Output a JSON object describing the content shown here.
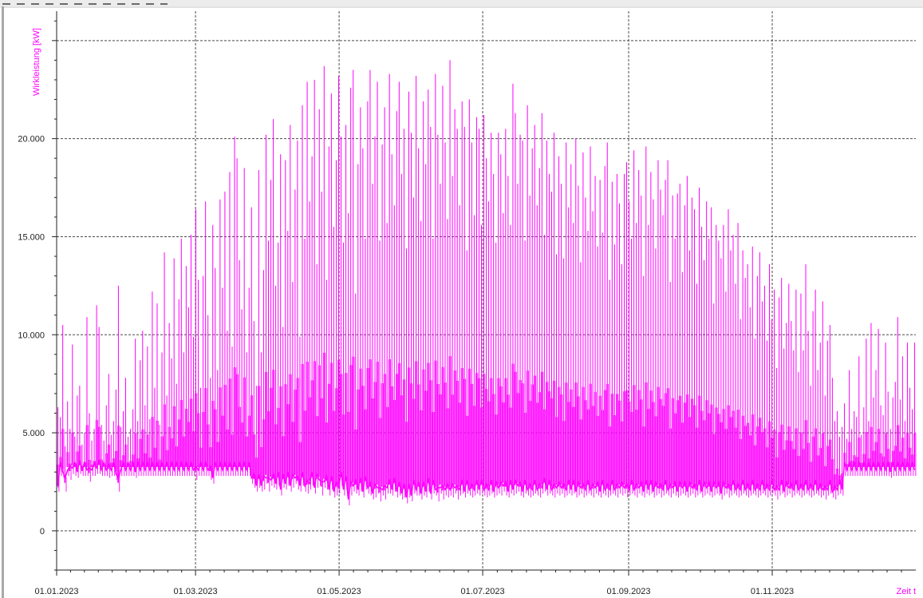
{
  "chart_data": {
    "type": "line",
    "ylabel": "Wirkleistung [kW]",
    "xlabel": "Zeit t",
    "x_ticks": [
      "01.01.2023",
      "01.03.2023",
      "01.05.2023",
      "01.07.2023",
      "01.09.2023",
      "01.11.2023"
    ],
    "y_ticks": [
      "0",
      "5.000",
      "10.000",
      "15.000",
      "20.000"
    ],
    "xlim": [
      "01.01.2023",
      "31.12.2023"
    ],
    "ylim": [
      -2000,
      26500
    ],
    "grid": true,
    "series": [
      {
        "color": "#ff00ff",
        "resolution": "daily",
        "daily_max_kw": [
          6300,
          5800,
          10500,
          4300,
          6600,
          5200,
          9500,
          4800,
          6900,
          7400,
          4400,
          5000,
          10900,
          6000,
          4600,
          5200,
          11500,
          10400,
          5400,
          4600,
          6400,
          8000,
          4900,
          5600,
          7200,
          12500,
          5300,
          6100,
          7800,
          4800,
          5200,
          6200,
          9800,
          5600,
          8700,
          10200,
          6400,
          9400,
          5700,
          12200,
          7300,
          11600,
          5400,
          9100,
          14200,
          6900,
          10600,
          8800,
          13900,
          7500,
          11800,
          14900,
          9100,
          13500,
          11400,
          15100,
          9900,
          16400,
          12800,
          7300,
          13000,
          16800,
          11000,
          7800,
          15600,
          13400,
          8200,
          16900,
          12400,
          17300,
          10200,
          18300,
          9400,
          20100,
          19000,
          13800,
          11300,
          18500,
          9100,
          12400,
          16500,
          10700,
          7400,
          18400,
          9100,
          13300,
          20200,
          14800,
          17900,
          21000,
          12500,
          14700,
          19200,
          10400,
          18900,
          15300,
          20700,
          12700,
          17400,
          19900,
          9900,
          21700,
          14900,
          22900,
          16800,
          19100,
          23000,
          13600,
          21500,
          17300,
          23700,
          12800,
          19600,
          22300,
          15500,
          18900,
          23200,
          20100,
          14700,
          20700,
          16200,
          22600,
          23500,
          12100,
          18700,
          21600,
          19500,
          14900,
          21900,
          23500,
          17700,
          20100,
          22900,
          14800,
          19700,
          21600,
          15700,
          23300,
          19200,
          16600,
          21400,
          22900,
          18200,
          20500,
          14400,
          22400,
          20300,
          17000,
          23200,
          19500,
          15800,
          21900,
          18700,
          22500,
          20600,
          14900,
          23300,
          20200,
          17700,
          22700,
          19800,
          15900,
          24000,
          18100,
          21500,
          20500,
          16600,
          21900,
          20600,
          14300,
          22000,
          19800,
          16100,
          21100,
          20500,
          15600,
          21200,
          19000,
          16800,
          20300,
          18200,
          14700,
          20300,
          19200,
          16200,
          20500,
          18100,
          15600,
          22800,
          21300,
          17700,
          20200,
          19900,
          14800,
          21700,
          17100,
          19500,
          20700,
          16600,
          18500,
          21300,
          15100,
          19900,
          18200,
          17300,
          20300,
          14100,
          19100,
          17700,
          13900,
          19800,
          16500,
          18700,
          15700,
          20000,
          17600,
          13700,
          19300,
          17000,
          15300,
          19600,
          16300,
          18100,
          14500,
          17900,
          15200,
          18600,
          19800,
          12800,
          17800,
          14600,
          18200,
          16700,
          13600,
          18200,
          18800,
          16800,
          14900,
          19400,
          15700,
          18400,
          17100,
          13000,
          19600,
          15600,
          18300,
          16900,
          14400,
          18900,
          17400,
          16100,
          17900,
          18900,
          12700,
          17100,
          14900,
          17200,
          17700,
          13200,
          16600,
          18100,
          14300,
          17000,
          16400,
          12600,
          17500,
          15500,
          13800,
          16800,
          14900,
          16500,
          11600,
          15600,
          14800,
          13900,
          15600,
          12200,
          16400,
          14300,
          15100,
          12600,
          15700,
          10800,
          14300,
          12900,
          13600,
          11400,
          14500,
          9800,
          13000,
          14200,
          11700,
          12500,
          9700,
          13600,
          10800,
          12300,
          8300,
          11900,
          12900,
          9300,
          10600,
          12600,
          10700,
          9200,
          12300,
          8100,
          12100,
          9200,
          13600,
          10200,
          7400,
          11200,
          12300,
          8200,
          9600,
          11700,
          6900,
          9700,
          10500,
          7800,
          5600,
          6100,
          4800,
          5300,
          6500,
          4700,
          8200,
          5200,
          6100,
          5800,
          8900,
          4900,
          6300,
          9800,
          5600,
          10600,
          6800,
          8200,
          10300,
          6400,
          5900,
          9600,
          7100,
          5200,
          6800,
          7600,
          10900,
          6700,
          8900,
          5600,
          9600,
          7300,
          6200,
          9600
        ],
        "daily_min_kw": [
          2000,
          2800,
          2700,
          2000,
          2800,
          2600,
          2900,
          2800,
          2700,
          2900,
          2800,
          2800,
          2800,
          2500,
          2800,
          2800,
          2900,
          2900,
          2800,
          2800,
          2800,
          2700,
          2800,
          2800,
          2600,
          2000,
          2800,
          2800,
          2800,
          2800,
          2800,
          2800,
          2700,
          2800,
          2800,
          2800,
          2800,
          2800,
          2800,
          2800,
          2800,
          2800,
          2800,
          2800,
          2800,
          2800,
          2800,
          2800,
          2800,
          2800,
          2800,
          2800,
          2800,
          2800,
          2800,
          2800,
          2800,
          2600,
          2800,
          2800,
          2800,
          2800,
          2800,
          2600,
          2400,
          2800,
          2800,
          2800,
          2800,
          2800,
          2800,
          2800,
          2800,
          2800,
          2800,
          2800,
          2800,
          2800,
          2800,
          2800,
          2400,
          2200,
          2000,
          2200,
          2000,
          2100,
          2400,
          2000,
          2300,
          2200,
          2100,
          2300,
          1800,
          2200,
          2100,
          2300,
          2000,
          2200,
          2400,
          2100,
          2000,
          2300,
          2000,
          1900,
          2100,
          2300,
          1900,
          2200,
          2300,
          1800,
          2200,
          2100,
          1800,
          2100,
          1700,
          1800,
          1900,
          2300,
          1800,
          2100,
          1300,
          1800,
          2000,
          1900,
          1800,
          2000,
          1700,
          2100,
          1900,
          1800,
          1600,
          1700,
          1900,
          1500,
          1800,
          1600,
          1900,
          1900,
          1800,
          2000,
          1700,
          1800,
          1600,
          1700,
          1400,
          1700,
          1500,
          1900,
          1800,
          1800,
          1600,
          1800,
          1700,
          2000,
          1600,
          1900,
          1800,
          1500,
          1900,
          1600,
          1800,
          1700,
          1800,
          1700,
          1900,
          1600,
          1800,
          1900,
          1700,
          1900,
          1800,
          1700,
          1800,
          1900,
          1800,
          1900,
          1800,
          1700,
          1800,
          1900,
          1700,
          1800,
          1900,
          1800,
          2000,
          1800,
          1700,
          1900,
          1800,
          1900,
          2000,
          1800,
          1700,
          1900,
          1800,
          1700,
          1800,
          1900,
          1800,
          1700,
          1900,
          2000,
          1800,
          1900,
          1800,
          1700,
          1900,
          1800,
          1900,
          1700,
          1800,
          1900,
          1800,
          1900,
          1700,
          1800,
          1900,
          1700,
          1800,
          1900,
          1800,
          1700,
          1900,
          1800,
          1700,
          1900,
          1800,
          1700,
          1800,
          1900,
          1800,
          1700,
          1900,
          1800,
          1900,
          1700,
          1800,
          1900,
          1800,
          1700,
          1900,
          1800,
          1700,
          1900,
          1800,
          1900,
          1700,
          1800,
          1900,
          1700,
          1800,
          1900,
          1800,
          1700,
          1900,
          1800,
          1700,
          1800,
          1900,
          1800,
          1700,
          1800,
          1900,
          1700,
          1800,
          1900,
          1700,
          1800,
          1900,
          1800,
          1700,
          1800,
          1900,
          1800,
          1600,
          1800,
          1900,
          1700,
          1800,
          1900,
          1800,
          1700,
          1800,
          1900,
          1800,
          1700,
          1800,
          1900,
          1800,
          1700,
          1800,
          1900,
          1800,
          1700,
          1800,
          1900,
          1800,
          1600,
          1800,
          1900,
          1700,
          1800,
          1900,
          1700,
          1800,
          1900,
          1800,
          1700,
          1800,
          1900,
          1800,
          1700,
          1800,
          1900,
          1800,
          1700,
          1800,
          1600,
          1800,
          1900,
          1700,
          1600,
          1800,
          1900,
          1800,
          2800,
          2800,
          2800,
          2800,
          2800,
          2800,
          2800,
          2800,
          2800,
          2800,
          2800,
          2800,
          2800,
          2800,
          2800,
          2800,
          2800,
          2800,
          2800,
          2700,
          2800,
          2800,
          2800,
          2800,
          2800,
          2800,
          2800,
          2800,
          2800,
          2800,
          2800,
          2800,
          2800,
          2800,
          2800
        ]
      }
    ]
  }
}
